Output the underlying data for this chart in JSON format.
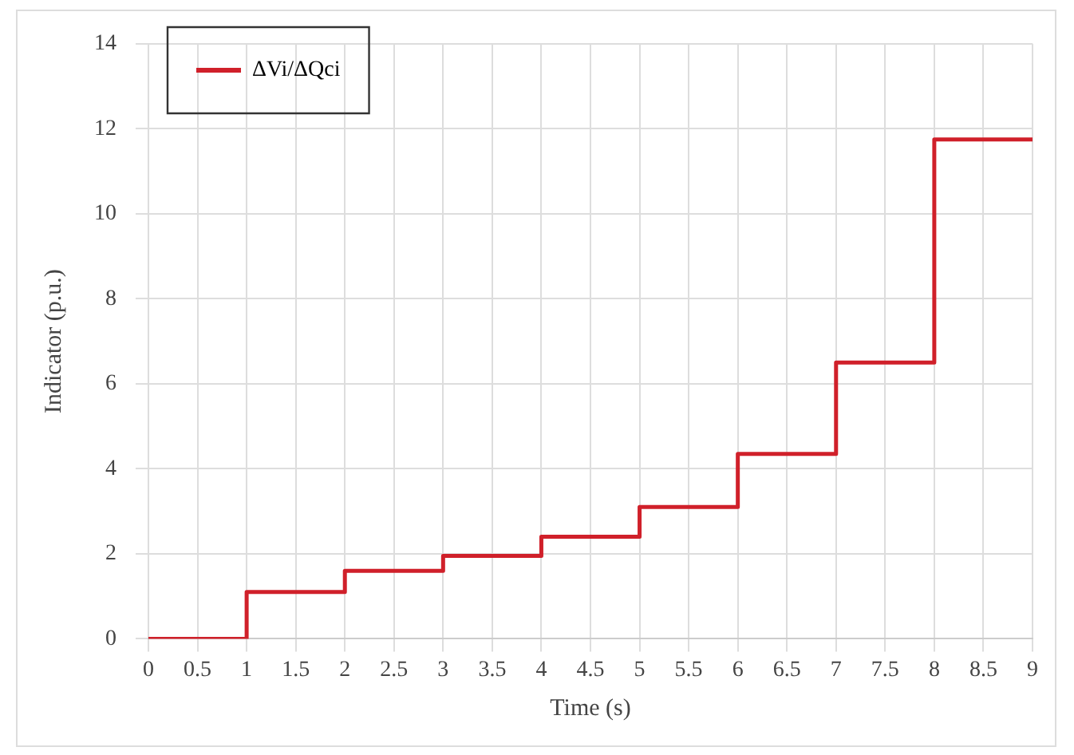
{
  "chart_data": {
    "type": "step",
    "xlabel": "Time (s)",
    "ylabel": "Indicator (p.u.)",
    "x": [
      0,
      1,
      2,
      3,
      4,
      5,
      6,
      7,
      8,
      9
    ],
    "series": [
      {
        "name": "ΔVi/ΔQci",
        "color": "#d0202a",
        "values": [
          0,
          1.1,
          1.6,
          1.95,
          2.4,
          3.1,
          4.35,
          6.5,
          11.75,
          11.75
        ]
      }
    ],
    "xlim": [
      0,
      9
    ],
    "xticks": [
      0,
      0.5,
      1,
      1.5,
      2,
      2.5,
      3,
      3.5,
      4,
      4.5,
      5,
      5.5,
      6,
      6.5,
      7,
      7.5,
      8,
      8.5,
      9
    ],
    "ylim": [
      0,
      14
    ],
    "yticks": [
      0,
      2,
      4,
      6,
      8,
      10,
      12,
      14
    ],
    "grid": true,
    "legend": "top left",
    "marker": "none",
    "line_style": "solid"
  }
}
